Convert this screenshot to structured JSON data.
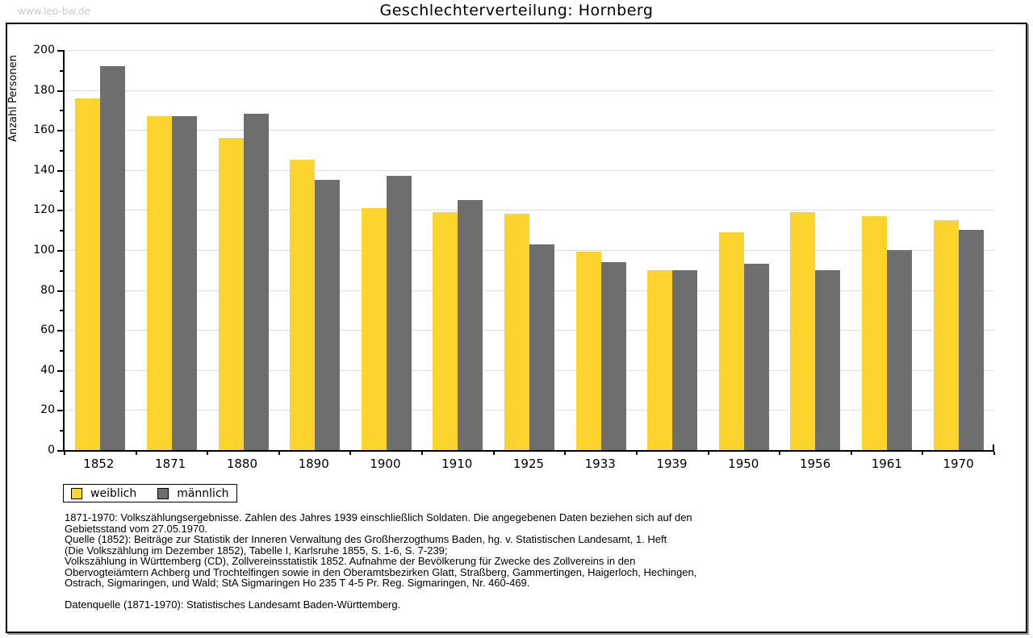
{
  "watermark": "www.leo-bw.de",
  "header": {
    "title": "Geschlechterverteilung: Hornberg"
  },
  "chart_data": {
    "type": "bar",
    "title": "Geschlechterverteilung: Hornberg",
    "xlabel": "",
    "ylabel": "Anzahl Personen",
    "ylim": [
      0,
      200
    ],
    "ytick_step": 20,
    "ytick_minor_step": 10,
    "grid": true,
    "legend_position": "bottom-left",
    "categories": [
      "1852",
      "1871",
      "1880",
      "1890",
      "1900",
      "1910",
      "1925",
      "1933",
      "1939",
      "1950",
      "1956",
      "1961",
      "1970"
    ],
    "series": [
      {
        "name": "weiblich",
        "color": "#FCD42D",
        "values": [
          176,
          167,
          156,
          145,
          121,
          119,
          118,
          99,
          90,
          109,
          119,
          117,
          115
        ]
      },
      {
        "name": "männlich",
        "color": "#6E6E6E",
        "values": [
          192,
          167,
          168,
          135,
          137,
          125,
          103,
          94,
          90,
          93,
          90,
          100,
          110
        ]
      }
    ]
  },
  "colors": {
    "grid": "#DDDDDD",
    "axis": "#000000",
    "watermark": "#C9C9C9",
    "frame_shadow": "#999999"
  },
  "footnotes": [
    "1871-1970: Volkszählungsergebnisse. Zahlen des Jahres 1939 einschließlich Soldaten. Die angegebenen Daten beziehen sich auf den",
    "Gebietsstand vom 27.05.1970.",
    "Quelle (1852): Beiträge zur Statistik der Inneren Verwaltung des Großherzogthums Baden, hg. v. Statistischen Landesamt, 1. Heft",
    "(Die Volkszählung im Dezember 1852), Tabelle I, Karlsruhe 1855, S. 1-6, S. 7-239;",
    "Volkszählung in Württemberg (CD), Zollvereinsstatistik 1852. Aufnahme der Bevölkerung für Zwecke des Zollvereins in den",
    "Obervogteiämtern Achberg und Trochtelfingen sowie in den Oberamtsbezirken Glatt, Straßberg, Gammertingen, Haigerloch, Hechingen,",
    "Ostrach, Sigmaringen, und Wald; StA Sigmaringen Ho 235 T 4-5 Pr. Reg. Sigmaringen, Nr. 460-469."
  ],
  "datasource": "Datenquelle (1871-1970): Statistisches Landesamt Baden-Württemberg."
}
